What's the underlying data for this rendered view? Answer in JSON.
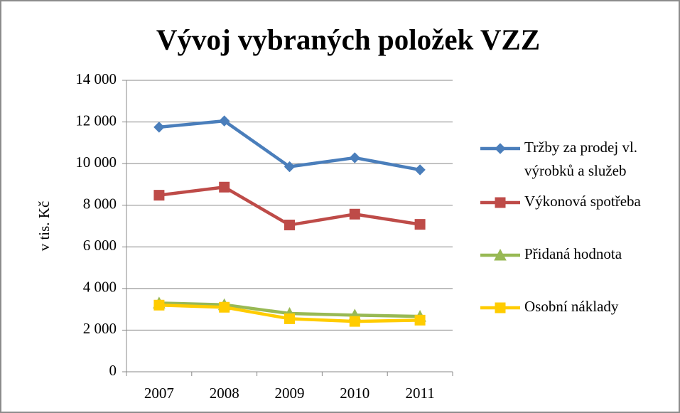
{
  "chart_data": {
    "type": "line",
    "title": "Vývoj vybraných položek VZZ",
    "y_label": "v tis. Kč",
    "categories": [
      "2007",
      "2008",
      "2009",
      "2010",
      "2011"
    ],
    "series": [
      {
        "name": "Tržby za prodej vl. výrobků a služeb",
        "color": "#4a7ebb",
        "marker": "diamond",
        "values": [
          11750,
          12050,
          9850,
          10280,
          9700
        ]
      },
      {
        "name": "Výkonová spotřeba",
        "color": "#be4b48",
        "marker": "square",
        "values": [
          8480,
          8870,
          7050,
          7570,
          7080
        ]
      },
      {
        "name": "Přidaná hodnota",
        "color": "#98b954",
        "marker": "triangle",
        "values": [
          3300,
          3220,
          2800,
          2720,
          2660
        ]
      },
      {
        "name": "Osobní náklady",
        "color": "#ffcc00",
        "marker": "square",
        "values": [
          3200,
          3100,
          2550,
          2420,
          2480
        ]
      }
    ],
    "ylim": [
      0,
      14000
    ],
    "yticks": [
      0,
      {
        "value": 2000,
        "label": "2 000"
      },
      {
        "value": 4000,
        "label": "4 000"
      },
      {
        "value": 6000,
        "label": "6 000"
      },
      {
        "value": 8000,
        "label": "8 000"
      },
      {
        "value": 10000,
        "label": "10 000"
      },
      {
        "value": 12000,
        "label": "12 000"
      },
      {
        "value": 14000,
        "label": "14 000"
      }
    ],
    "grid": true,
    "legend": "right"
  }
}
